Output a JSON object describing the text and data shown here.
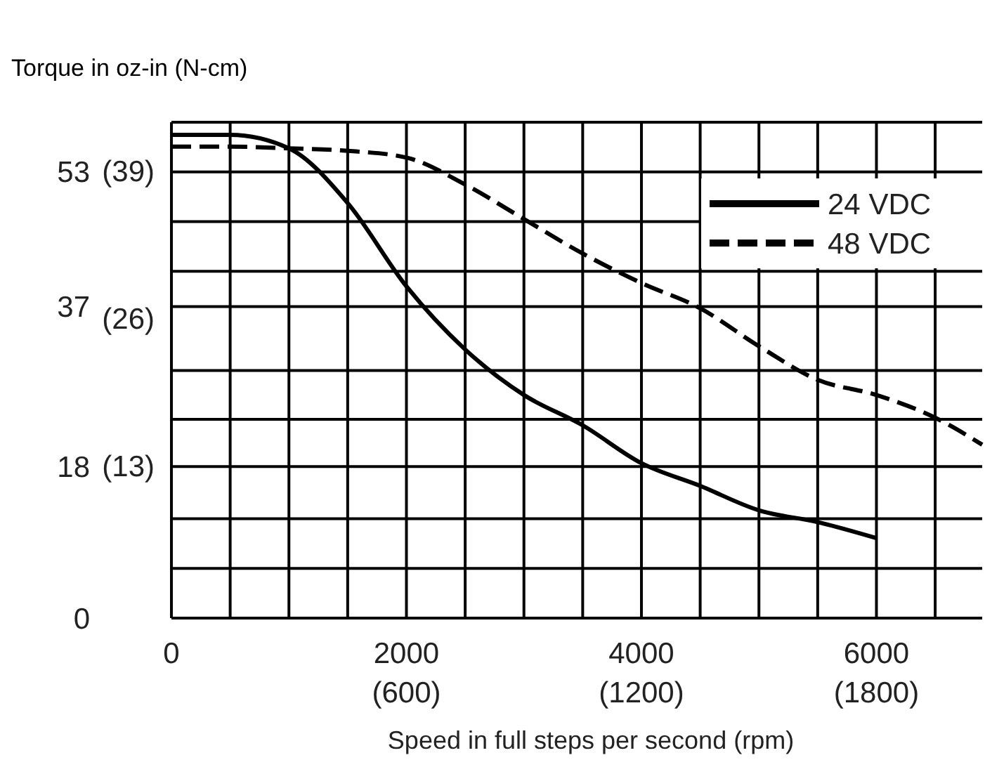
{
  "chart_data": {
    "type": "line",
    "subtitle": "Torque in oz-in (N-cm)",
    "xlabel": "Speed in full steps per second (rpm)",
    "x": [
      0,
      500,
      1000,
      1500,
      2000,
      2500,
      3000,
      3500,
      4000,
      4500,
      5000,
      5500,
      6000,
      6500,
      6900
    ],
    "series": [
      {
        "name": "24 VDC",
        "color": "#000000",
        "line_style": "solid",
        "values": [
          57.4,
          57.4,
          55.8,
          49.3,
          39.4,
          31.9,
          26.5,
          22.9,
          18.4,
          15.7,
          12.8,
          11.4,
          9.5,
          null,
          null
        ]
      },
      {
        "name": "48 VDC",
        "color": "#000000",
        "line_style": "dashed",
        "values": [
          56.0,
          56.0,
          55.8,
          55.5,
          54.7,
          51.5,
          47.4,
          43.3,
          39.8,
          36.8,
          32.3,
          28.3,
          26.5,
          23.8,
          20.6
        ]
      }
    ],
    "xlim": [
      0,
      6900
    ],
    "xticks": [
      0,
      {
        "value": 500,
        "label": null
      },
      {
        "value": 1000,
        "label": null
      },
      {
        "value": 1500,
        "label": null
      },
      2000,
      {
        "value": 2500,
        "label": null
      },
      {
        "value": 3000,
        "label": null
      },
      {
        "value": 3500,
        "label": null
      },
      4000,
      {
        "value": 4500,
        "label": null
      },
      {
        "value": 5000,
        "label": null
      },
      {
        "value": 5500,
        "label": null
      },
      6000,
      {
        "value": 6500,
        "label": null
      }
    ],
    "x2lim": [
      0,
      2070
    ],
    "x2ticks": [
      {
        "value": 600,
        "label": "(600)"
      },
      {
        "value": 1200,
        "label": "(1200)"
      },
      {
        "value": 1800,
        "label": "(1800)"
      }
    ],
    "ylim": [
      0,
      58.9
    ],
    "yticks": [
      0,
      {
        "value": 5.9,
        "label": null
      },
      {
        "value": 11.8,
        "label": null
      },
      18,
      {
        "value": 23.6,
        "label": null
      },
      {
        "value": 29.4,
        "label": null
      },
      37,
      {
        "value": 41.2,
        "label": null
      },
      {
        "value": 47.1,
        "label": null
      },
      53
    ],
    "y2lim": [
      -0.4,
      43.3
    ],
    "y2ticks": [
      {
        "value": 13,
        "label": "(13)"
      },
      {
        "value": 26,
        "label": "(26)"
      },
      {
        "value": 39,
        "label": "(39)"
      }
    ],
    "grid": true,
    "legend": "top right",
    "marker": "none"
  }
}
